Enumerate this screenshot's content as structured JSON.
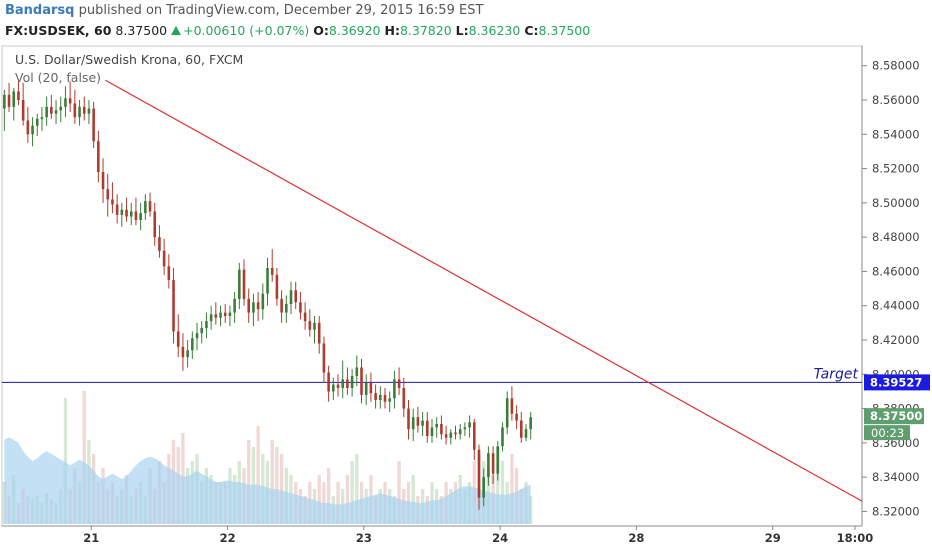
{
  "header": {
    "author": "Bandarsq",
    "published_text": "published on TradingView.com, December 29, 2015 16:59 EST",
    "symbol": "FX:USDSEK, 60",
    "last": "8.37500",
    "change": "+0.00610 (+0.07%)",
    "o_label": "O:",
    "o_value": "8.36920",
    "h_label": "H:",
    "h_value": "8.37820",
    "l_label": "L:",
    "l_value": "8.36230",
    "c_label": "C:",
    "c_value": "8.37500"
  },
  "instrument": {
    "title": "U.S. Dollar/Swedish Krona, 60, FXCM",
    "volume_label": "Vol (20, false)"
  },
  "colors": {
    "up": "#3a7d3a",
    "down": "#b03a2e",
    "trendline": "#e03030",
    "target_line": "#1a1aa0",
    "target_badge": "#1a1ae0",
    "last_badge": "#5f9e6e",
    "volume_ma": "#a9d3f0"
  },
  "chart_data": {
    "type": "candlestick",
    "y_ticks": [
      "8.58000",
      "8.56000",
      "8.54000",
      "8.52000",
      "8.50000",
      "8.48000",
      "8.46000",
      "8.44000",
      "8.42000",
      "8.40000",
      "8.38000",
      "8.36000",
      "8.34000",
      "8.32000"
    ],
    "y_range": [
      8.3115,
      8.5915
    ],
    "x_ticks": [
      "21",
      "22",
      "23",
      "24",
      "28",
      "29",
      "18:00"
    ],
    "x_range": [
      0,
      183
    ],
    "x_tick_positions": [
      19,
      48,
      77,
      106,
      135,
      164,
      181.5
    ],
    "target": {
      "label": "Target",
      "value": "8.39527",
      "y": 8.39527
    },
    "last_price": {
      "value": "8.37500",
      "y": 8.375,
      "countdown": "00:23"
    },
    "trendline": {
      "x1": 22,
      "y1": 8.5715,
      "x2": 183,
      "y2": 8.326
    },
    "candles": [
      [
        8.555,
        8.566,
        8.542,
        8.563
      ],
      [
        8.563,
        8.57,
        8.553,
        8.556
      ],
      [
        8.556,
        8.567,
        8.548,
        8.565
      ],
      [
        8.565,
        8.571,
        8.557,
        8.56
      ],
      [
        8.56,
        8.57,
        8.545,
        8.548
      ],
      [
        8.548,
        8.556,
        8.535,
        8.54
      ],
      [
        8.54,
        8.55,
        8.533,
        8.545
      ],
      [
        8.545,
        8.552,
        8.539,
        8.549
      ],
      [
        8.549,
        8.556,
        8.542,
        8.55
      ],
      [
        8.55,
        8.562,
        8.545,
        8.556
      ],
      [
        8.556,
        8.563,
        8.549,
        8.552
      ],
      [
        8.552,
        8.56,
        8.546,
        8.554
      ],
      [
        8.554,
        8.562,
        8.547,
        8.556
      ],
      [
        8.556,
        8.568,
        8.55,
        8.561
      ],
      [
        8.561,
        8.571,
        8.553,
        8.558
      ],
      [
        8.558,
        8.566,
        8.546,
        8.55
      ],
      [
        8.55,
        8.56,
        8.545,
        8.556
      ],
      [
        8.556,
        8.562,
        8.548,
        8.552
      ],
      [
        8.552,
        8.56,
        8.546,
        8.555
      ],
      [
        8.555,
        8.559,
        8.532,
        8.536
      ],
      [
        8.536,
        8.542,
        8.512,
        8.518
      ],
      [
        8.518,
        8.526,
        8.5,
        8.508
      ],
      [
        8.508,
        8.517,
        8.492,
        8.502
      ],
      [
        8.502,
        8.512,
        8.494,
        8.499
      ],
      [
        8.499,
        8.505,
        8.488,
        8.493
      ],
      [
        8.493,
        8.5,
        8.486,
        8.496
      ],
      [
        8.496,
        8.503,
        8.489,
        8.492
      ],
      [
        8.492,
        8.5,
        8.487,
        8.495
      ],
      [
        8.495,
        8.503,
        8.487,
        8.49
      ],
      [
        8.49,
        8.5,
        8.484,
        8.494
      ],
      [
        8.494,
        8.505,
        8.49,
        8.501
      ],
      [
        8.501,
        8.506,
        8.492,
        8.495
      ],
      [
        8.495,
        8.5,
        8.475,
        8.48
      ],
      [
        8.48,
        8.487,
        8.468,
        8.472
      ],
      [
        8.472,
        8.479,
        8.458,
        8.463
      ],
      [
        8.463,
        8.47,
        8.45,
        8.455
      ],
      [
        8.455,
        8.462,
        8.418,
        8.425
      ],
      [
        8.425,
        8.435,
        8.41,
        8.416
      ],
      [
        8.416,
        8.424,
        8.402,
        8.41
      ],
      [
        8.41,
        8.42,
        8.404,
        8.414
      ],
      [
        8.414,
        8.425,
        8.409,
        8.421
      ],
      [
        8.421,
        8.43,
        8.414,
        8.424
      ],
      [
        8.424,
        8.431,
        8.418,
        8.427
      ],
      [
        8.427,
        8.436,
        8.421,
        8.431
      ],
      [
        8.431,
        8.44,
        8.426,
        8.435
      ],
      [
        8.435,
        8.442,
        8.429,
        8.433
      ],
      [
        8.433,
        8.44,
        8.428,
        8.436
      ],
      [
        8.436,
        8.441,
        8.43,
        8.434
      ],
      [
        8.434,
        8.44,
        8.428,
        8.436
      ],
      [
        8.436,
        8.448,
        8.43,
        8.444
      ],
      [
        8.444,
        8.465,
        8.438,
        8.461
      ],
      [
        8.461,
        8.467,
        8.44,
        8.444
      ],
      [
        8.444,
        8.45,
        8.43,
        8.436
      ],
      [
        8.436,
        8.447,
        8.428,
        8.442
      ],
      [
        8.442,
        8.448,
        8.431,
        8.438
      ],
      [
        8.438,
        8.453,
        8.432,
        8.447
      ],
      [
        8.447,
        8.468,
        8.44,
        8.462
      ],
      [
        8.462,
        8.473,
        8.454,
        8.458
      ],
      [
        8.458,
        8.462,
        8.44,
        8.444
      ],
      [
        8.444,
        8.449,
        8.43,
        8.436
      ],
      [
        8.436,
        8.446,
        8.43,
        8.441
      ],
      [
        8.441,
        8.454,
        8.435,
        8.449
      ],
      [
        8.449,
        8.454,
        8.438,
        8.442
      ],
      [
        8.442,
        8.448,
        8.432,
        8.436
      ],
      [
        8.436,
        8.442,
        8.426,
        8.431
      ],
      [
        8.431,
        8.438,
        8.422,
        8.426
      ],
      [
        8.426,
        8.434,
        8.418,
        8.43
      ],
      [
        8.43,
        8.434,
        8.412,
        8.418
      ],
      [
        8.418,
        8.422,
        8.395,
        8.401
      ],
      [
        8.401,
        8.405,
        8.384,
        8.39
      ],
      [
        8.39,
        8.398,
        8.385,
        8.394
      ],
      [
        8.394,
        8.4,
        8.387,
        8.392
      ],
      [
        8.392,
        8.408,
        8.386,
        8.397
      ],
      [
        8.397,
        8.404,
        8.388,
        8.392
      ],
      [
        8.392,
        8.403,
        8.387,
        8.399
      ],
      [
        8.399,
        8.411,
        8.393,
        8.404
      ],
      [
        8.404,
        8.409,
        8.383,
        8.388
      ],
      [
        8.388,
        8.4,
        8.382,
        8.395
      ],
      [
        8.395,
        8.401,
        8.384,
        8.389
      ],
      [
        8.389,
        8.394,
        8.38,
        8.385
      ],
      [
        8.385,
        8.393,
        8.38,
        8.388
      ],
      [
        8.388,
        8.392,
        8.38,
        8.384
      ],
      [
        8.384,
        8.39,
        8.378,
        8.386
      ],
      [
        8.386,
        8.402,
        8.38,
        8.397
      ],
      [
        8.397,
        8.404,
        8.388,
        8.392
      ],
      [
        8.392,
        8.398,
        8.375,
        8.38
      ],
      [
        8.38,
        8.385,
        8.362,
        8.368
      ],
      [
        8.368,
        8.38,
        8.361,
        8.375
      ],
      [
        8.375,
        8.381,
        8.366,
        8.37
      ],
      [
        8.37,
        8.378,
        8.364,
        8.373
      ],
      [
        8.373,
        8.378,
        8.36,
        8.364
      ],
      [
        8.364,
        8.374,
        8.36,
        8.369
      ],
      [
        8.369,
        8.375,
        8.363,
        8.371
      ],
      [
        8.371,
        8.376,
        8.362,
        8.365
      ],
      [
        8.365,
        8.37,
        8.359,
        8.363
      ],
      [
        8.363,
        8.368,
        8.359,
        8.366
      ],
      [
        8.366,
        8.37,
        8.362,
        8.365
      ],
      [
        8.365,
        8.371,
        8.362,
        8.368
      ],
      [
        8.368,
        8.372,
        8.364,
        8.369
      ],
      [
        8.369,
        8.376,
        8.363,
        8.372
      ],
      [
        8.372,
        8.374,
        8.35,
        8.356
      ],
      [
        8.356,
        8.359,
        8.321,
        8.328
      ],
      [
        8.328,
        8.345,
        8.323,
        8.34
      ],
      [
        8.34,
        8.358,
        8.335,
        8.354
      ],
      [
        8.354,
        8.358,
        8.336,
        8.342
      ],
      [
        8.342,
        8.361,
        8.338,
        8.358
      ],
      [
        8.358,
        8.372,
        8.355,
        8.369
      ],
      [
        8.369,
        8.39,
        8.365,
        8.386
      ],
      [
        8.386,
        8.393,
        8.373,
        8.377
      ],
      [
        8.377,
        8.382,
        8.368,
        8.373
      ],
      [
        8.373,
        8.378,
        8.36,
        8.363
      ],
      [
        8.363,
        8.371,
        8.361,
        8.368
      ],
      [
        8.368,
        8.378,
        8.362,
        8.375
      ]
    ],
    "volume": [
      0.3,
      0.2,
      0.35,
      0.15,
      0.25,
      0.2,
      0.18,
      0.2,
      0.15,
      0.22,
      0.18,
      0.15,
      0.25,
      0.9,
      0.25,
      0.4,
      0.3,
      0.95,
      0.6,
      0.5,
      0.3,
      0.4,
      0.25,
      0.3,
      0.2,
      0.25,
      0.35,
      0.2,
      0.25,
      0.3,
      0.2,
      0.4,
      0.25,
      0.45,
      0.3,
      0.5,
      0.6,
      0.55,
      0.65,
      0.4,
      0.45,
      0.5,
      0.3,
      0.4,
      0.35,
      0.3,
      0.3,
      0.3,
      0.4,
      0.35,
      0.45,
      0.4,
      0.6,
      0.55,
      0.7,
      0.5,
      0.45,
      0.6,
      0.55,
      0.5,
      0.4,
      0.35,
      0.3,
      0.25,
      0.2,
      0.3,
      0.25,
      0.35,
      0.3,
      0.4,
      0.2,
      0.3,
      0.25,
      0.35,
      0.45,
      0.5,
      0.3,
      0.25,
      0.35,
      0.2,
      0.25,
      0.3,
      0.25,
      0.2,
      0.45,
      0.25,
      0.3,
      0.35,
      0.2,
      0.25,
      0.2,
      0.3,
      0.25,
      0.2,
      0.3,
      0.25,
      0.3,
      0.35,
      0.25,
      0.3,
      0.45,
      0.5,
      0.45,
      0.4,
      0.35,
      0.55,
      0.45,
      0.3,
      0.5,
      0.4,
      0.25,
      0.3,
      0.2
    ],
    "volume_ma": [
      0.6,
      0.62,
      0.6,
      0.58,
      0.52,
      0.48,
      0.45,
      0.47,
      0.5,
      0.52,
      0.5,
      0.48,
      0.46,
      0.44,
      0.42,
      0.44,
      0.46,
      0.44,
      0.42,
      0.38,
      0.34,
      0.32,
      0.34,
      0.36,
      0.34,
      0.32,
      0.34,
      0.38,
      0.42,
      0.45,
      0.47,
      0.48,
      0.47,
      0.45,
      0.42,
      0.4,
      0.38,
      0.36,
      0.34,
      0.34,
      0.36,
      0.38,
      0.36,
      0.34,
      0.32,
      0.3,
      0.3,
      0.31,
      0.31,
      0.3,
      0.3,
      0.29,
      0.28,
      0.28,
      0.28,
      0.27,
      0.26,
      0.25,
      0.25,
      0.24,
      0.23,
      0.22,
      0.21,
      0.2,
      0.19,
      0.18,
      0.17,
      0.16,
      0.15,
      0.15,
      0.14,
      0.14,
      0.14,
      0.15,
      0.16,
      0.17,
      0.18,
      0.19,
      0.2,
      0.21,
      0.22,
      0.21,
      0.2,
      0.19,
      0.18,
      0.17,
      0.16,
      0.16,
      0.15,
      0.15,
      0.16,
      0.17,
      0.17,
      0.18,
      0.2,
      0.22,
      0.24,
      0.26,
      0.27,
      0.27,
      0.26,
      0.25,
      0.24,
      0.23,
      0.22,
      0.21,
      0.21,
      0.21,
      0.22,
      0.23,
      0.25,
      0.27,
      0.28
    ]
  }
}
